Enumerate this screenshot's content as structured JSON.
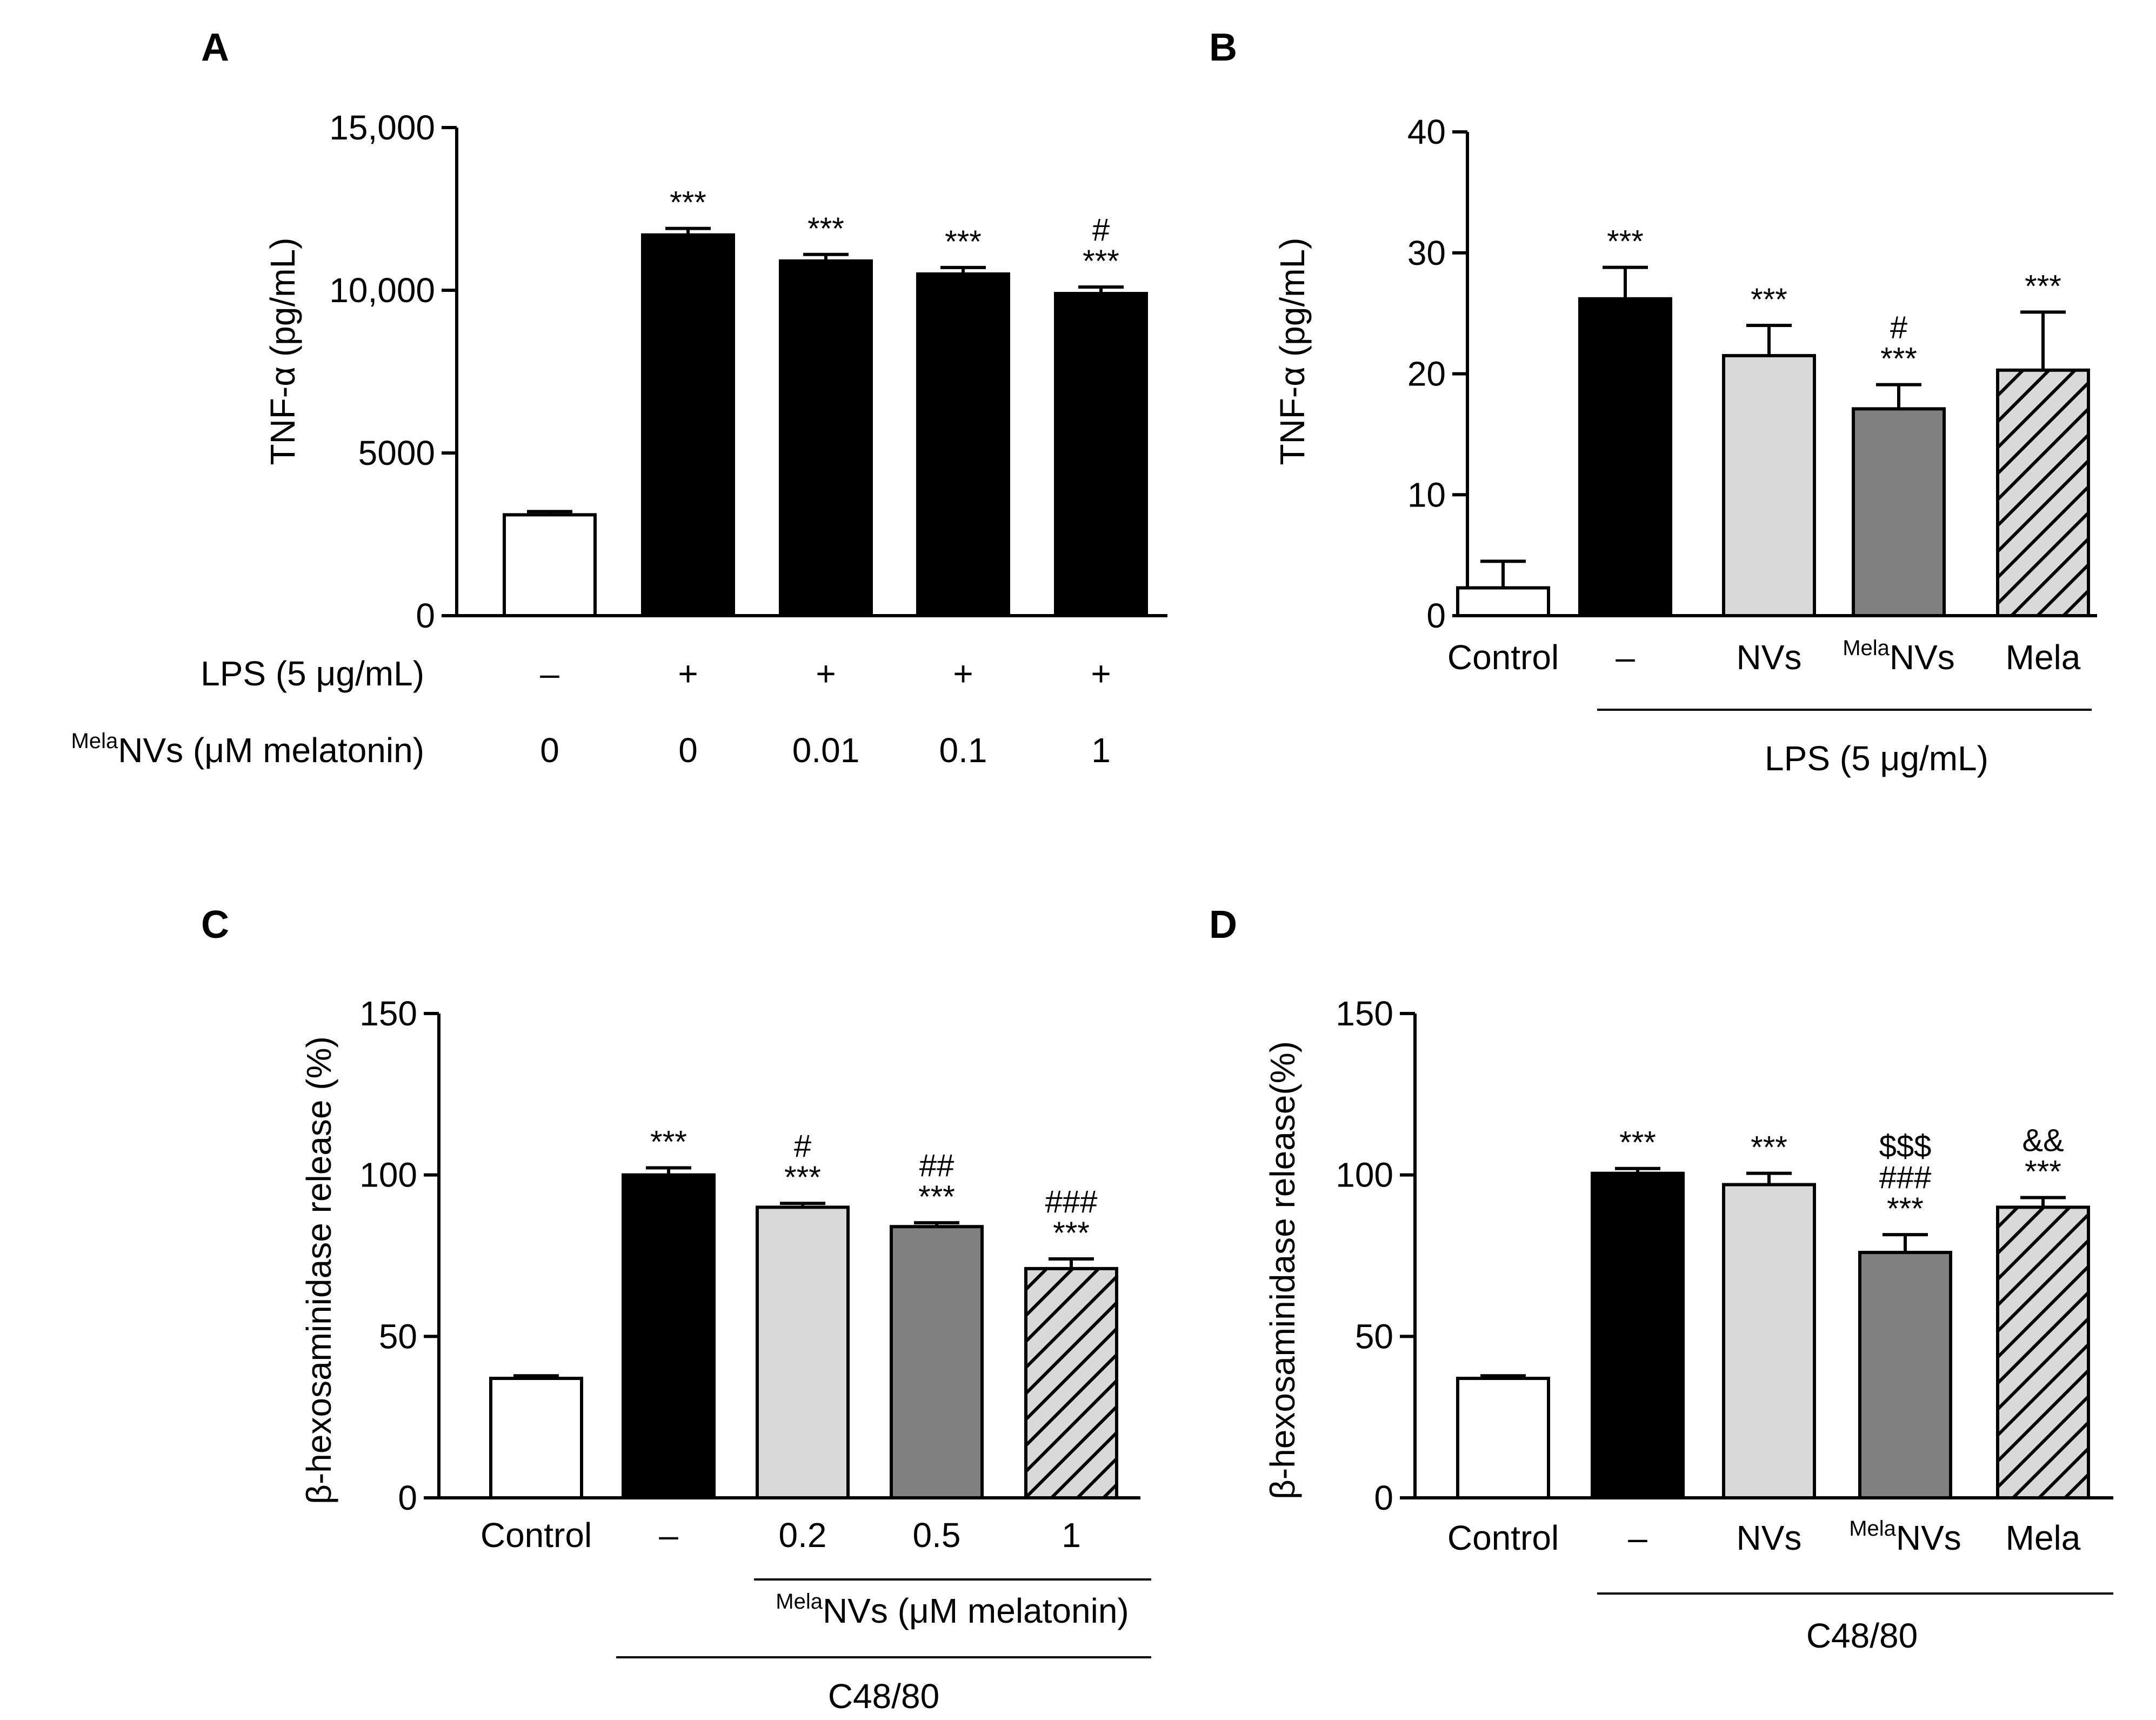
{
  "chart_data": [
    {
      "panel": "A",
      "type": "bar",
      "ylabel": "TNF-α (pg/mL)",
      "ylim": [
        0,
        15000
      ],
      "yticks": [
        "0",
        "5000",
        "10,000",
        "15,000"
      ],
      "ytick_values": [
        0,
        5000,
        10000,
        15000
      ],
      "categories": [
        "0",
        "0",
        "0.01",
        "0.1",
        "1"
      ],
      "values": [
        3100,
        11700,
        10900,
        10500,
        9900
      ],
      "errors": [
        100,
        200,
        200,
        200,
        200
      ],
      "fills": [
        "white",
        "black",
        "black",
        "black",
        "black"
      ],
      "significance": [
        [],
        [
          "***"
        ],
        [
          "***"
        ],
        [
          "***"
        ],
        [
          "***",
          "#"
        ]
      ],
      "row_labels": [
        {
          "label": "LPS (5 μg/mL)",
          "values": [
            "–",
            "+",
            "+",
            "+",
            "+"
          ]
        },
        {
          "label_sup": "Mela",
          "label": "NVs (μM melatonin)",
          "values": [
            "0",
            "0",
            "0.01",
            "0.1",
            "1"
          ]
        }
      ]
    },
    {
      "panel": "B",
      "type": "bar",
      "ylabel": "TNF-α (pg/mL)",
      "ylim": [
        0,
        40
      ],
      "yticks": [
        "0",
        "10",
        "20",
        "30",
        "40"
      ],
      "ytick_values": [
        0,
        10,
        20,
        30,
        40
      ],
      "categories": [
        "Control",
        "–",
        "NVs",
        "NVs",
        "Mela"
      ],
      "category_sup": [
        "",
        "",
        "",
        "Mela",
        ""
      ],
      "values": [
        2.3,
        26.2,
        21.5,
        17.1,
        20.3
      ],
      "errors": [
        2.2,
        2.6,
        2.5,
        2.0,
        4.8
      ],
      "fills": [
        "white",
        "black",
        "light",
        "dark",
        "hatch"
      ],
      "significance": [
        [],
        [
          "***"
        ],
        [
          "***"
        ],
        [
          "***",
          "#"
        ],
        [
          "***"
        ]
      ],
      "group_label": "LPS (5 μg/mL)"
    },
    {
      "panel": "C",
      "type": "bar",
      "ylabel": "β-hexosaminidase release (%)",
      "ylim": [
        0,
        150
      ],
      "yticks": [
        "0",
        "50",
        "100",
        "150"
      ],
      "ytick_values": [
        0,
        50,
        100,
        150
      ],
      "categories": [
        "Control",
        "–",
        "0.2",
        "0.5",
        "1"
      ],
      "values": [
        37,
        100,
        90,
        84,
        71
      ],
      "errors": [
        0.8,
        2.2,
        1.2,
        1.2,
        3.0
      ],
      "fills": [
        "white",
        "black",
        "light",
        "dark",
        "hatch"
      ],
      "significance": [
        [],
        [
          "***"
        ],
        [
          "***",
          "#"
        ],
        [
          "***",
          "##"
        ],
        [
          "***",
          "###"
        ]
      ],
      "subgroup_label_sup": "Mela",
      "subgroup_label": "NVs  (μM melatonin)",
      "group_label": "C48/80"
    },
    {
      "panel": "D",
      "type": "bar",
      "ylabel": "β-hexosaminidase release(%)",
      "ylim": [
        0,
        150
      ],
      "yticks": [
        "0",
        "50",
        "100",
        "150"
      ],
      "ytick_values": [
        0,
        50,
        100,
        150
      ],
      "categories": [
        "Control",
        "–",
        "NVs",
        "NVs",
        "Mela"
      ],
      "category_sup": [
        "",
        "",
        "",
        "Mela",
        ""
      ],
      "values": [
        37,
        100.5,
        97,
        76,
        90
      ],
      "errors": [
        0.8,
        1.5,
        3.5,
        5.5,
        3.0
      ],
      "fills": [
        "white",
        "black",
        "light",
        "dark",
        "hatch"
      ],
      "significance": [
        [],
        [
          "***"
        ],
        [
          "***"
        ],
        [
          "***",
          "###",
          "$$$"
        ],
        [
          "***",
          "&&"
        ]
      ],
      "group_label": "C48/80"
    }
  ]
}
